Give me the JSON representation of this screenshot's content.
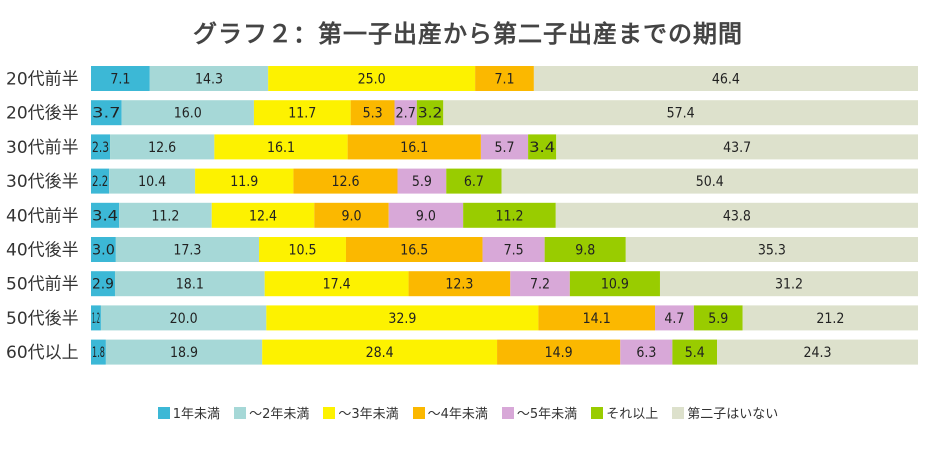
{
  "chart_data": {
    "type": "bar",
    "orientation": "horizontal",
    "stacked": true,
    "percent_stacked": true,
    "title": "グラフ２：第一子出産から第二子出産までの期間",
    "categories": [
      "20代前半",
      "20代後半",
      "30代前半",
      "30代後半",
      "40代前半",
      "40代後半",
      "50代前半",
      "50代後半",
      "60代以上"
    ],
    "series": [
      {
        "name": "1年未満",
        "color": "#3cb8d6",
        "values": [
          7.1,
          3.7,
          2.3,
          2.2,
          3.4,
          3.0,
          2.9,
          1.2,
          1.8
        ]
      },
      {
        "name": "〜2年未満",
        "color": "#a6d8d7",
        "values": [
          14.3,
          16.0,
          12.6,
          10.4,
          11.2,
          17.3,
          18.1,
          20.0,
          18.9
        ]
      },
      {
        "name": "〜3年未満",
        "color": "#fdf200",
        "values": [
          25.0,
          11.7,
          16.1,
          11.9,
          12.4,
          10.5,
          17.4,
          32.9,
          28.4
        ]
      },
      {
        "name": "〜4年未満",
        "color": "#fbb800",
        "values": [
          7.1,
          5.3,
          16.1,
          12.6,
          9.0,
          16.5,
          12.3,
          14.1,
          14.9
        ]
      },
      {
        "name": "〜5年未満",
        "color": "#d8a8d8",
        "values": [
          0,
          2.7,
          5.7,
          5.9,
          9.0,
          7.5,
          7.2,
          4.7,
          6.3
        ]
      },
      {
        "name": "それ以上",
        "color": "#99cc00",
        "values": [
          0,
          3.2,
          3.4,
          6.7,
          11.2,
          9.8,
          10.9,
          5.9,
          5.4
        ]
      },
      {
        "name": "第二子はいない",
        "color": "#dde1cc",
        "values": [
          46.4,
          57.4,
          43.7,
          50.4,
          43.8,
          35.3,
          31.2,
          21.2,
          24.3
        ]
      }
    ],
    "data_labels": true,
    "legend_position": "bottom"
  }
}
